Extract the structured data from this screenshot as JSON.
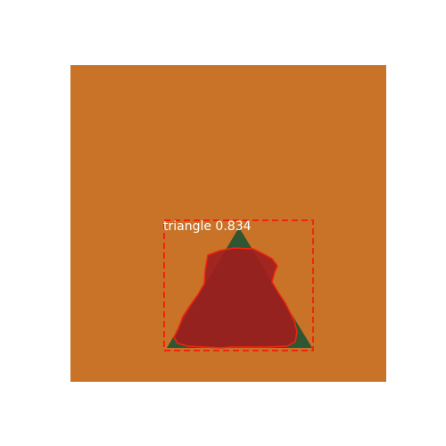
{
  "image": {
    "background_color": "#C87328",
    "shape_color": "#2F5533"
  },
  "detection": {
    "label": "triangle 0.834",
    "class": "triangle",
    "score": 0.834,
    "box_color": "#F0250F",
    "mask_fill": "#A01E1E",
    "mask_outline": "#F0250F"
  }
}
